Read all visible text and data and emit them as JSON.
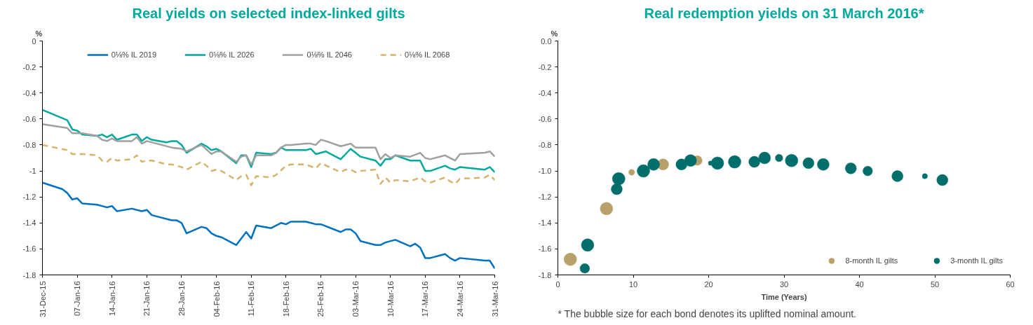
{
  "chart_data": [
    {
      "type": "line",
      "title": "Real yields on selected index-linked gilts",
      "ylabel": "%",
      "xlim": [
        "2015-12-31",
        "2016-03-31"
      ],
      "ylim": [
        -1.8,
        0
      ],
      "xticks": [
        {
          "value": "2015-12-31",
          "label": "31-Dec-15"
        },
        {
          "value": "2016-01-07",
          "label": "07-Jan-16"
        },
        {
          "value": "2016-01-14",
          "label": "14-Jan-16"
        },
        {
          "value": "2016-01-21",
          "label": "21-Jan-16"
        },
        {
          "value": "2016-01-28",
          "label": "28-Jan-16"
        },
        {
          "value": "2016-02-04",
          "label": "04-Feb-16"
        },
        {
          "value": "2016-02-11",
          "label": "11-Feb-16"
        },
        {
          "value": "2016-02-18",
          "label": "18-Feb-16"
        },
        {
          "value": "2016-02-25",
          "label": "25-Feb-16"
        },
        {
          "value": "2016-03-03",
          "label": "03-Mar-16"
        },
        {
          "value": "2016-03-10",
          "label": "10-Mar-16"
        },
        {
          "value": "2016-03-17",
          "label": "17-Mar-16"
        },
        {
          "value": "2016-03-24",
          "label": "24-Mar-16"
        },
        {
          "value": "2016-03-31",
          "label": "31-Mar-16"
        }
      ],
      "yticks": [
        0,
        -0.2,
        -0.4,
        -0.6,
        -0.8,
        -1,
        -1.2,
        -1.4,
        -1.6,
        -1.8
      ],
      "grid": false,
      "legend": "top",
      "line_style": "solid",
      "series": [
        {
          "name": "0⅛% IL 2019",
          "color": "#0070c0",
          "x": [
            "2015-12-31",
            "2016-01-04",
            "2016-01-05",
            "2016-01-06",
            "2016-01-07",
            "2016-01-08",
            "2016-01-11",
            "2016-01-12",
            "2016-01-13",
            "2016-01-14",
            "2016-01-15",
            "2016-01-18",
            "2016-01-20",
            "2016-01-21",
            "2016-01-22",
            "2016-01-26",
            "2016-01-27",
            "2016-01-28",
            "2016-01-29",
            "2016-02-01",
            "2016-02-02",
            "2016-02-03",
            "2016-02-04",
            "2016-02-05",
            "2016-02-08",
            "2016-02-10",
            "2016-02-11",
            "2016-02-12",
            "2016-02-15",
            "2016-02-17",
            "2016-02-18",
            "2016-02-19",
            "2016-02-22",
            "2016-02-24",
            "2016-02-25",
            "2016-02-29",
            "2016-03-01",
            "2016-03-02",
            "2016-03-03",
            "2016-03-04",
            "2016-03-07",
            "2016-03-08",
            "2016-03-09",
            "2016-03-11",
            "2016-03-14",
            "2016-03-15",
            "2016-03-16",
            "2016-03-17",
            "2016-03-18",
            "2016-03-21",
            "2016-03-22",
            "2016-03-23",
            "2016-03-24",
            "2016-03-29",
            "2016-03-30",
            "2016-03-31"
          ],
          "values": [
            -1.09,
            -1.14,
            -1.17,
            -1.22,
            -1.21,
            -1.25,
            -1.26,
            -1.27,
            -1.28,
            -1.27,
            -1.31,
            -1.29,
            -1.31,
            -1.3,
            -1.34,
            -1.38,
            -1.38,
            -1.4,
            -1.48,
            -1.43,
            -1.44,
            -1.48,
            -1.5,
            -1.51,
            -1.57,
            -1.47,
            -1.52,
            -1.42,
            -1.44,
            -1.4,
            -1.41,
            -1.39,
            -1.39,
            -1.41,
            -1.41,
            -1.47,
            -1.45,
            -1.45,
            -1.48,
            -1.54,
            -1.57,
            -1.57,
            -1.55,
            -1.53,
            -1.58,
            -1.56,
            -1.59,
            -1.67,
            -1.67,
            -1.64,
            -1.67,
            -1.69,
            -1.67,
            -1.69,
            -1.69,
            -1.75
          ]
        },
        {
          "name": "0⅛% IL 2026",
          "color": "#00a99d",
          "x": [
            "2015-12-31",
            "2016-01-05",
            "2016-01-06",
            "2016-01-07",
            "2016-01-08",
            "2016-01-11",
            "2016-01-12",
            "2016-01-13",
            "2016-01-14",
            "2016-01-15",
            "2016-01-18",
            "2016-01-19",
            "2016-01-20",
            "2016-01-21",
            "2016-01-22",
            "2016-01-25",
            "2016-01-26",
            "2016-01-27",
            "2016-01-28",
            "2016-01-29",
            "2016-02-01",
            "2016-02-02",
            "2016-02-03",
            "2016-02-04",
            "2016-02-05",
            "2016-02-08",
            "2016-02-09",
            "2016-02-10",
            "2016-02-11",
            "2016-02-12",
            "2016-02-15",
            "2016-02-16",
            "2016-02-17",
            "2016-02-18",
            "2016-02-22",
            "2016-02-23",
            "2016-02-24",
            "2016-02-26",
            "2016-02-29",
            "2016-03-02",
            "2016-03-04",
            "2016-03-07",
            "2016-03-08",
            "2016-03-09",
            "2016-03-10",
            "2016-03-11",
            "2016-03-14",
            "2016-03-16",
            "2016-03-17",
            "2016-03-18",
            "2016-03-21",
            "2016-03-22",
            "2016-03-23",
            "2016-03-24",
            "2016-03-29",
            "2016-03-30",
            "2016-03-31"
          ],
          "values": [
            -0.53,
            -0.61,
            -0.68,
            -0.69,
            -0.72,
            -0.73,
            -0.72,
            -0.74,
            -0.72,
            -0.76,
            -0.72,
            -0.72,
            -0.77,
            -0.74,
            -0.76,
            -0.78,
            -0.77,
            -0.77,
            -0.8,
            -0.86,
            -0.79,
            -0.81,
            -0.84,
            -0.83,
            -0.85,
            -0.94,
            -0.88,
            -0.88,
            -0.97,
            -0.86,
            -0.87,
            -0.86,
            -0.82,
            -0.84,
            -0.84,
            -0.83,
            -0.87,
            -0.85,
            -0.91,
            -0.83,
            -0.89,
            -0.92,
            -0.96,
            -0.91,
            -0.91,
            -0.88,
            -0.92,
            -0.92,
            -1.0,
            -1.0,
            -0.96,
            -0.98,
            -0.99,
            -0.97,
            -0.99,
            -0.97,
            -1.01
          ]
        },
        {
          "name": "0⅛% IL 2046",
          "color": "#a0a0a0",
          "x": [
            "2015-12-31",
            "2016-01-05",
            "2016-01-06",
            "2016-01-08",
            "2016-01-11",
            "2016-01-12",
            "2016-01-13",
            "2016-01-14",
            "2016-01-15",
            "2016-01-18",
            "2016-01-19",
            "2016-01-20",
            "2016-01-21",
            "2016-01-26",
            "2016-01-28",
            "2016-01-29",
            "2016-02-01",
            "2016-02-03",
            "2016-02-04",
            "2016-02-05",
            "2016-02-08",
            "2016-02-09",
            "2016-02-10",
            "2016-02-11",
            "2016-02-12",
            "2016-02-15",
            "2016-02-16",
            "2016-02-17",
            "2016-02-18",
            "2016-02-19",
            "2016-02-22",
            "2016-02-23",
            "2016-02-24",
            "2016-02-25",
            "2016-02-26",
            "2016-02-29",
            "2016-03-02",
            "2016-03-03",
            "2016-03-07",
            "2016-03-08",
            "2016-03-09",
            "2016-03-10",
            "2016-03-11",
            "2016-03-14",
            "2016-03-16",
            "2016-03-17",
            "2016-03-18",
            "2016-03-21",
            "2016-03-23",
            "2016-03-24",
            "2016-03-29",
            "2016-03-30",
            "2016-03-31"
          ],
          "values": [
            -0.64,
            -0.67,
            -0.71,
            -0.71,
            -0.73,
            -0.76,
            -0.77,
            -0.75,
            -0.77,
            -0.77,
            -0.74,
            -0.79,
            -0.77,
            -0.82,
            -0.83,
            -0.85,
            -0.8,
            -0.87,
            -0.85,
            -0.85,
            -0.93,
            -0.89,
            -0.88,
            -0.95,
            -0.88,
            -0.88,
            -0.86,
            -0.82,
            -0.8,
            -0.8,
            -0.79,
            -0.79,
            -0.8,
            -0.76,
            -0.77,
            -0.81,
            -0.79,
            -0.82,
            -0.82,
            -0.91,
            -0.87,
            -0.9,
            -0.88,
            -0.89,
            -0.86,
            -0.9,
            -0.91,
            -0.88,
            -0.92,
            -0.87,
            -0.86,
            -0.85,
            -0.89
          ]
        },
        {
          "name": "0⅛% IL 2068",
          "color": "#d4b46e",
          "line_style": "dashed",
          "x": [
            "2015-12-31",
            "2016-01-05",
            "2016-01-06",
            "2016-01-08",
            "2016-01-11",
            "2016-01-12",
            "2016-01-13",
            "2016-01-14",
            "2016-01-15",
            "2016-01-18",
            "2016-01-19",
            "2016-01-20",
            "2016-01-21",
            "2016-01-22",
            "2016-01-25",
            "2016-01-26",
            "2016-01-28",
            "2016-01-29",
            "2016-02-01",
            "2016-02-02",
            "2016-02-03",
            "2016-02-04",
            "2016-02-05",
            "2016-02-08",
            "2016-02-09",
            "2016-02-10",
            "2016-02-11",
            "2016-02-12",
            "2016-02-15",
            "2016-02-16",
            "2016-02-18",
            "2016-02-19",
            "2016-02-22",
            "2016-02-24",
            "2016-02-25",
            "2016-02-29",
            "2016-03-01",
            "2016-03-02",
            "2016-03-03",
            "2016-03-04",
            "2016-03-07",
            "2016-03-08",
            "2016-03-09",
            "2016-03-10",
            "2016-03-11",
            "2016-03-14",
            "2016-03-16",
            "2016-03-17",
            "2016-03-18",
            "2016-03-21",
            "2016-03-22",
            "2016-03-23",
            "2016-03-24",
            "2016-03-29",
            "2016-03-30",
            "2016-03-31"
          ],
          "values": [
            -0.8,
            -0.84,
            -0.87,
            -0.87,
            -0.88,
            -0.92,
            -0.93,
            -0.9,
            -0.92,
            -0.91,
            -0.88,
            -0.93,
            -0.92,
            -0.92,
            -0.95,
            -0.95,
            -0.97,
            -0.99,
            -0.93,
            -0.96,
            -1.0,
            -0.99,
            -1.0,
            -1.07,
            -1.04,
            -1.03,
            -1.11,
            -1.04,
            -1.05,
            -1.03,
            -0.96,
            -0.95,
            -0.95,
            -0.98,
            -0.94,
            -1.01,
            -0.99,
            -0.99,
            -1.01,
            -1.0,
            -0.99,
            -1.1,
            -1.05,
            -1.09,
            -1.07,
            -1.08,
            -1.05,
            -1.08,
            -1.09,
            -1.05,
            -1.08,
            -1.1,
            -1.06,
            -1.05,
            -1.03,
            -1.07
          ]
        }
      ]
    },
    {
      "type": "bubble",
      "title": "Real redemption yields on 31 March 2016*",
      "ylabel": "%",
      "xlabel": "Time (Years)",
      "xlim": [
        0,
        60
      ],
      "ylim": [
        -1.8,
        0
      ],
      "xticks": [
        0,
        10,
        20,
        30,
        40,
        50,
        60
      ],
      "yticks": [
        {
          "value": 0,
          "label": "0.0"
        },
        -0.2,
        -0.4,
        -0.6,
        -0.8,
        {
          "value": -1,
          "label": "-1.0"
        },
        -1.2,
        -1.4,
        -1.6,
        -1.8
      ],
      "grid": false,
      "legend": "bottom right",
      "annotations": [
        "* The bubble size for each bond denotes its uplifted nominal amount."
      ],
      "series": [
        {
          "name": "8-month IL gilts",
          "color": "#b8a06a",
          "x": [
            1.65,
            6.45,
            9.79,
            13.96,
            18.5
          ],
          "values": [
            -1.68,
            -1.29,
            -1.01,
            -0.95,
            -0.92
          ],
          "sizes": [
            1,
            1,
            0.22,
            0.78,
            0.58
          ]
        },
        {
          "name": "3-month IL gilts",
          "color": "#006e6a",
          "x": [
            3.57,
            3.94,
            7.81,
            8.07,
            11.35,
            12.7,
            16.4,
            17.6,
            20.24,
            21.17,
            23.45,
            26.06,
            27.42,
            29.34,
            31.0,
            33.24,
            35.2,
            38.86,
            41.1,
            45.04,
            48.68,
            51.0
          ],
          "values": [
            -1.75,
            -1.57,
            -1.14,
            -1.06,
            -1.0,
            -0.95,
            -0.95,
            -0.92,
            -0.94,
            -0.94,
            -0.93,
            -0.93,
            -0.9,
            -0.9,
            -0.92,
            -0.94,
            -0.95,
            -0.98,
            -1.0,
            -1.04,
            -1.04,
            -1.07
          ],
          "sizes": [
            0.58,
            1,
            0.78,
            1,
            1,
            0.89,
            0.78,
            0.89,
            0.12,
            1,
            1,
            0.78,
            0.89,
            0.35,
            1,
            0.78,
            0.89,
            0.78,
            0.58,
            0.78,
            0.17,
            0.78
          ]
        }
      ]
    }
  ]
}
